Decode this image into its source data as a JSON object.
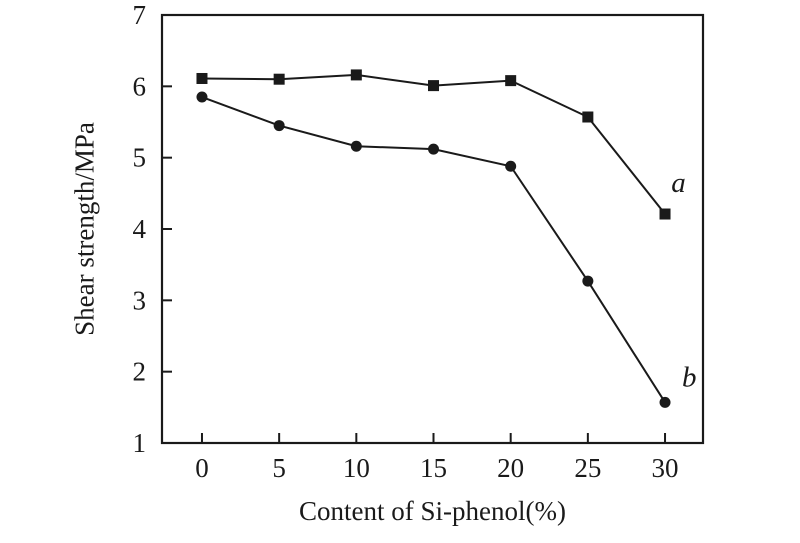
{
  "figure": {
    "xlabel": "Content of Si-phenol(%)",
    "ylabel": "Shear strength/MPa"
  },
  "chart_data": {
    "type": "line",
    "title": "",
    "xlabel": "Content of Si-phenol(%)",
    "ylabel": "Shear strength/MPa",
    "x": [
      0,
      5,
      10,
      15,
      20,
      25,
      30
    ],
    "series": [
      {
        "name": "a",
        "marker": "square",
        "values": [
          6.11,
          6.1,
          6.16,
          6.01,
          6.08,
          5.57,
          4.21
        ]
      },
      {
        "name": "b",
        "marker": "circle",
        "values": [
          5.85,
          5.45,
          5.16,
          5.12,
          4.88,
          3.27,
          1.57
        ]
      }
    ],
    "xticks": [
      0,
      5,
      10,
      15,
      20,
      25,
      30
    ],
    "yticks": [
      1,
      2,
      3,
      4,
      5,
      6,
      7
    ],
    "xlim": [
      -2.59,
      32.46
    ],
    "ylim": [
      1,
      7
    ],
    "grid": false,
    "legend_position": "none",
    "annotations": [
      {
        "text": "a",
        "x": 30.4,
        "y": 4.66
      },
      {
        "text": "b",
        "x": 31.1,
        "y": 1.93
      }
    ],
    "line_color": "#1a1a1a",
    "background_color": "#ffffff"
  }
}
